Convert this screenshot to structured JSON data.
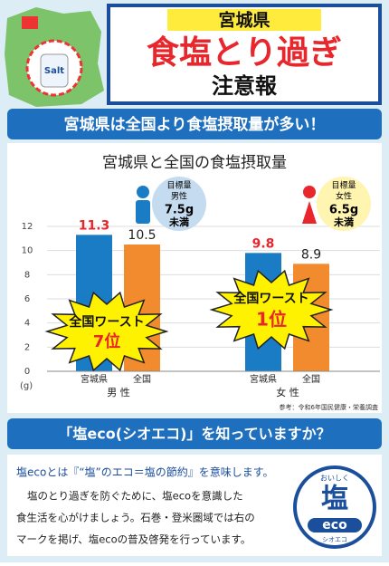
{
  "header": {
    "region": "宮城県",
    "title": "食塩とり過ぎ",
    "subtitle": "注意報",
    "bottle": "Salt"
  },
  "banner1": "宮城県は全国より食塩摂取量が多い！",
  "chart_data": {
    "type": "bar",
    "title": "宮城県と全国の食塩摂取量",
    "categories": [
      "男 性",
      "女 性"
    ],
    "series": [
      {
        "name": "宮城県",
        "color": "#1b7cc6",
        "values": [
          11.3,
          9.8
        ]
      },
      {
        "name": "全国",
        "color": "#f28a2e",
        "values": [
          10.5,
          8.9
        ]
      }
    ],
    "ylim": [
      0,
      12
    ],
    "yticks": [
      0,
      2,
      4,
      6,
      8,
      10,
      12
    ],
    "grid": true,
    "y_unit": "(g)",
    "source": "参考：令和6年国民健康・栄養調査",
    "targets": [
      {
        "label": "目標量",
        "group": "男性",
        "amount": "7.5g",
        "limit": "未満"
      },
      {
        "label": "目標量",
        "group": "女性",
        "amount": "6.5g",
        "limit": "未満"
      }
    ],
    "bursts": [
      {
        "text": "全国ワースト",
        "rank": "7位"
      },
      {
        "text": "全国ワースト",
        "rank": "1位"
      }
    ]
  },
  "banner2": "「塩eco(シオエコ)」を知っていますか？",
  "body": {
    "lead": "塩ecoとは『“塩”のエコ＝塩の節約』を意味します。",
    "lines": [
      "塩のとり過ぎを防ぐために、塩ecoを意識した",
      "食生活を心がけましょう。石巻・登米圏域では右の",
      "マークを掲げ、塩ecoの普及啓発を行っています。"
    ]
  },
  "logo": {
    "top": "おいしく",
    "main": "塩",
    "eco": "eco",
    "bottom": "シオエコ"
  }
}
